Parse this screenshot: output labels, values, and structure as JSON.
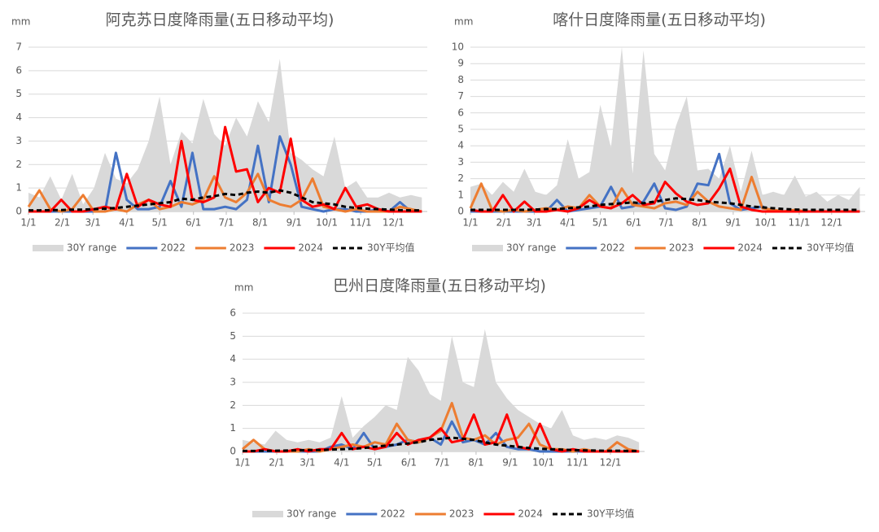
{
  "chart_data": [
    {
      "type": "line",
      "title": "阿克苏日度降雨量(五日移动平均)",
      "y_label": "mm",
      "x": [
        1,
        11,
        21,
        31,
        41,
        51,
        61,
        71,
        81,
        91,
        101,
        111,
        121,
        131,
        141,
        151,
        161,
        171,
        181,
        191,
        201,
        211,
        221,
        231,
        241,
        251,
        261,
        271,
        281,
        291,
        301,
        311,
        321,
        331,
        341,
        351,
        361
      ],
      "xlim": [
        1,
        366
      ],
      "xticks": [
        {
          "value": 1,
          "label": "1/1"
        },
        {
          "value": 32,
          "label": "2/1"
        },
        {
          "value": 60,
          "label": "3/1"
        },
        {
          "value": 91,
          "label": "4/1"
        },
        {
          "value": 121,
          "label": "5/1"
        },
        {
          "value": 152,
          "label": "6/1"
        },
        {
          "value": 182,
          "label": "7/1"
        },
        {
          "value": 213,
          "label": "8/1"
        },
        {
          "value": 244,
          "label": "9/1"
        },
        {
          "value": 274,
          "label": "10/1"
        },
        {
          "value": 305,
          "label": "11/1"
        },
        {
          "value": 335,
          "label": "12/1"
        }
      ],
      "ylim": [
        0,
        7
      ],
      "yticks": [
        0,
        1,
        2,
        3,
        4,
        5,
        6,
        7
      ],
      "grid": true,
      "series": [
        {
          "name": "30Y range",
          "kind": "area",
          "color": "#d9d9d9",
          "values": [
            0.8,
            0.6,
            1.5,
            0.5,
            1.6,
            0.3,
            1.0,
            2.5,
            1.4,
            1.2,
            1.8,
            3.0,
            4.9,
            2.0,
            3.4,
            2.9,
            4.8,
            3.3,
            2.8,
            4.0,
            3.2,
            4.7,
            3.8,
            6.5,
            2.5,
            2.2,
            1.8,
            1.5,
            3.2,
            1.0,
            1.3,
            0.6,
            0.6,
            0.8,
            0.6,
            0.7,
            0.6
          ]
        },
        {
          "name": "2022",
          "kind": "line",
          "color": "#4472c4",
          "values": [
            0,
            0,
            0,
            0,
            0,
            0,
            0,
            0,
            2.5,
            0.5,
            0.1,
            0.1,
            0.2,
            1.3,
            0.2,
            2.5,
            0.1,
            0.1,
            0.2,
            0.1,
            0.5,
            2.8,
            0.4,
            3.2,
            2.0,
            0.2,
            0.1,
            0,
            0.1,
            0.1,
            0,
            0,
            0.1,
            0,
            0.4,
            0,
            0
          ]
        },
        {
          "name": "2023",
          "kind": "line",
          "color": "#ed7d31",
          "values": [
            0.2,
            0.9,
            0.1,
            0,
            0.1,
            0.7,
            0,
            0,
            0.1,
            0,
            0.3,
            0.5,
            0.1,
            0.2,
            0.4,
            0.3,
            0.5,
            1.5,
            0.6,
            0.4,
            0.8,
            1.6,
            0.5,
            0.3,
            0.2,
            0.5,
            1.4,
            0.2,
            0.1,
            0,
            0.1,
            0,
            0,
            0,
            0.2,
            0.1,
            0
          ]
        },
        {
          "name": "2024",
          "kind": "line",
          "color": "#ff0000",
          "values": [
            0,
            0,
            0,
            0.5,
            0,
            0,
            0.1,
            0.2,
            0.1,
            1.6,
            0.2,
            0.5,
            0.3,
            0.2,
            3.0,
            0.5,
            0.4,
            0.6,
            3.6,
            1.7,
            1.8,
            0.4,
            1.0,
            0.8,
            3.1,
            0.5,
            0.2,
            0.3,
            0.1,
            1.0,
            0.2,
            0.3,
            0.1,
            0,
            0,
            0,
            0
          ]
        },
        {
          "name": "30Y平均值",
          "kind": "dashed",
          "color": "#000000",
          "values": [
            0.05,
            0.05,
            0.06,
            0.06,
            0.08,
            0.08,
            0.1,
            0.12,
            0.15,
            0.2,
            0.25,
            0.3,
            0.35,
            0.4,
            0.55,
            0.5,
            0.6,
            0.65,
            0.75,
            0.7,
            0.8,
            0.85,
            0.8,
            0.9,
            0.8,
            0.6,
            0.4,
            0.35,
            0.3,
            0.2,
            0.15,
            0.12,
            0.1,
            0.08,
            0.06,
            0.05,
            0.05
          ]
        }
      ]
    },
    {
      "type": "line",
      "title": "喀什日度降雨量(五日移动平均)",
      "y_label": "mm",
      "x": [
        1,
        11,
        21,
        31,
        41,
        51,
        61,
        71,
        81,
        91,
        101,
        111,
        121,
        131,
        141,
        151,
        161,
        171,
        181,
        191,
        201,
        211,
        221,
        231,
        241,
        251,
        261,
        271,
        281,
        291,
        301,
        311,
        321,
        331,
        341,
        351,
        361
      ],
      "xlim": [
        1,
        366
      ],
      "xticks": [
        {
          "value": 1,
          "label": "1/1"
        },
        {
          "value": 32,
          "label": "2/1"
        },
        {
          "value": 60,
          "label": "3/1"
        },
        {
          "value": 91,
          "label": "4/1"
        },
        {
          "value": 121,
          "label": "5/1"
        },
        {
          "value": 152,
          "label": "6/1"
        },
        {
          "value": 182,
          "label": "7/1"
        },
        {
          "value": 213,
          "label": "8/1"
        },
        {
          "value": 244,
          "label": "9/1"
        },
        {
          "value": 274,
          "label": "10/1"
        },
        {
          "value": 305,
          "label": "11/1"
        },
        {
          "value": 335,
          "label": "12/1"
        }
      ],
      "ylim": [
        0,
        10
      ],
      "yticks": [
        0,
        1,
        2,
        3,
        4,
        5,
        6,
        7,
        8,
        9,
        10
      ],
      "grid": true,
      "series": [
        {
          "name": "30Y range",
          "kind": "area",
          "color": "#d9d9d9",
          "values": [
            1.5,
            1.7,
            1.0,
            1.8,
            1.2,
            2.6,
            1.2,
            1.0,
            1.6,
            4.4,
            2.0,
            2.4,
            6.5,
            3.9,
            10,
            2.3,
            9.8,
            3.5,
            2.5,
            5.2,
            7.0,
            2.5,
            2.6,
            2.0,
            4.0,
            1.2,
            3.7,
            1.0,
            1.2,
            1.0,
            2.2,
            0.9,
            1.2,
            0.6,
            1.0,
            0.7,
            1.5
          ]
        },
        {
          "name": "2022",
          "kind": "line",
          "color": "#4472c4",
          "values": [
            0,
            0,
            0,
            0,
            0,
            0,
            0,
            0,
            0.7,
            0,
            0.1,
            0.2,
            0.3,
            1.5,
            0.2,
            0.3,
            0.6,
            1.7,
            0.2,
            0.1,
            0.3,
            1.7,
            1.6,
            3.5,
            0.5,
            0.1,
            0.2,
            0.3,
            0,
            0,
            0,
            0,
            0,
            0,
            0,
            0,
            0
          ]
        },
        {
          "name": "2023",
          "kind": "line",
          "color": "#ed7d31",
          "values": [
            0.2,
            1.7,
            0.1,
            0,
            0.1,
            0,
            0.1,
            0.2,
            0.1,
            0.3,
            0.2,
            1.0,
            0.3,
            0.2,
            1.4,
            0.4,
            0.3,
            0.2,
            0.5,
            0.6,
            0.4,
            1.2,
            0.6,
            0.3,
            0.2,
            0.1,
            2.1,
            0.2,
            0.1,
            0,
            0.1,
            0,
            0,
            0,
            0,
            0,
            0
          ]
        },
        {
          "name": "2024",
          "kind": "line",
          "color": "#ff0000",
          "values": [
            0.1,
            0,
            0,
            1.0,
            0,
            0.6,
            0,
            0,
            0.1,
            0,
            0.2,
            0.7,
            0.3,
            0.2,
            0.5,
            1.0,
            0.4,
            0.5,
            1.8,
            1.1,
            0.6,
            0.4,
            0.5,
            1.4,
            2.6,
            0.3,
            0.1,
            0,
            0,
            0,
            0,
            0,
            0,
            0,
            0,
            0,
            0
          ]
        },
        {
          "name": "30Y平均值",
          "kind": "dashed",
          "color": "#000000",
          "values": [
            0.1,
            0.1,
            0.1,
            0.1,
            0.1,
            0.1,
            0.12,
            0.15,
            0.15,
            0.2,
            0.25,
            0.3,
            0.4,
            0.45,
            0.5,
            0.55,
            0.5,
            0.6,
            0.7,
            0.8,
            0.75,
            0.7,
            0.6,
            0.55,
            0.5,
            0.4,
            0.3,
            0.25,
            0.2,
            0.15,
            0.12,
            0.1,
            0.1,
            0.1,
            0.1,
            0.1,
            0.1
          ]
        }
      ]
    },
    {
      "type": "line",
      "title": "巴州日度降雨量(五日移动平均)",
      "y_label": "mm",
      "x": [
        1,
        11,
        21,
        31,
        41,
        51,
        61,
        71,
        81,
        91,
        101,
        111,
        121,
        131,
        141,
        151,
        161,
        171,
        181,
        191,
        201,
        211,
        221,
        231,
        241,
        251,
        261,
        271,
        281,
        291,
        301,
        311,
        321,
        331,
        341,
        351,
        361
      ],
      "xlim": [
        1,
        366
      ],
      "xticks": [
        {
          "value": 1,
          "label": "1/1"
        },
        {
          "value": 32,
          "label": "2/1"
        },
        {
          "value": 60,
          "label": "3/1"
        },
        {
          "value": 91,
          "label": "4/1"
        },
        {
          "value": 121,
          "label": "5/1"
        },
        {
          "value": 152,
          "label": "6/1"
        },
        {
          "value": 182,
          "label": "7/1"
        },
        {
          "value": 213,
          "label": "8/1"
        },
        {
          "value": 244,
          "label": "9/1"
        },
        {
          "value": 274,
          "label": "10/1"
        },
        {
          "value": 305,
          "label": "11/1"
        },
        {
          "value": 335,
          "label": "12/1"
        }
      ],
      "ylim": [
        0,
        6
      ],
      "yticks": [
        0,
        1,
        2,
        3,
        4,
        5,
        6
      ],
      "grid": true,
      "series": [
        {
          "name": "30Y range",
          "kind": "area",
          "color": "#d9d9d9",
          "values": [
            0.5,
            0.4,
            0.3,
            0.9,
            0.5,
            0.4,
            0.5,
            0.4,
            0.6,
            2.4,
            0.6,
            1.1,
            1.5,
            2.0,
            1.8,
            4.1,
            3.5,
            2.5,
            2.2,
            5.0,
            3.0,
            2.8,
            5.3,
            3.0,
            2.3,
            1.8,
            1.5,
            1.2,
            1.0,
            1.8,
            0.7,
            0.5,
            0.6,
            0.5,
            0.7,
            0.6,
            0.4
          ]
        },
        {
          "name": "2022",
          "kind": "line",
          "color": "#4472c4",
          "values": [
            0,
            0,
            0,
            0,
            0,
            0,
            0,
            0,
            0.2,
            0.3,
            0.1,
            0.8,
            0.1,
            0.2,
            0.3,
            0.5,
            0.4,
            0.6,
            0.3,
            1.3,
            0.4,
            0.5,
            0.3,
            0.8,
            0.2,
            0.1,
            0.1,
            0,
            0,
            0,
            0,
            0,
            0,
            0,
            0,
            0,
            0
          ]
        },
        {
          "name": "2023",
          "kind": "line",
          "color": "#ed7d31",
          "values": [
            0.1,
            0.5,
            0.1,
            0,
            0,
            0,
            0.1,
            0,
            0.1,
            0.2,
            0.3,
            0.2,
            0.4,
            0.3,
            1.2,
            0.5,
            0.4,
            0.6,
            0.9,
            2.1,
            0.6,
            0.5,
            0.7,
            0.3,
            0.5,
            0.6,
            1.2,
            0.3,
            0.1,
            0.1,
            0,
            0.1,
            0,
            0,
            0.4,
            0.1,
            0
          ]
        },
        {
          "name": "2024",
          "kind": "line",
          "color": "#ff0000",
          "values": [
            0,
            0,
            0.1,
            0,
            0,
            0.1,
            0,
            0.1,
            0.1,
            0.8,
            0.1,
            0.2,
            0.1,
            0.2,
            0.8,
            0.3,
            0.5,
            0.6,
            1.0,
            0.4,
            0.5,
            1.6,
            0.3,
            0.4,
            1.6,
            0.2,
            0.1,
            1.2,
            0.1,
            0,
            0.1,
            0,
            0,
            0,
            0,
            0,
            0
          ]
        },
        {
          "name": "30Y平均值",
          "kind": "dashed",
          "color": "#000000",
          "values": [
            0.02,
            0.02,
            0.03,
            0.03,
            0.04,
            0.05,
            0.06,
            0.06,
            0.08,
            0.1,
            0.12,
            0.15,
            0.2,
            0.25,
            0.3,
            0.35,
            0.4,
            0.5,
            0.55,
            0.6,
            0.55,
            0.5,
            0.4,
            0.3,
            0.25,
            0.2,
            0.15,
            0.12,
            0.1,
            0.08,
            0.06,
            0.05,
            0.04,
            0.03,
            0.03,
            0.02,
            0.02
          ]
        }
      ]
    }
  ]
}
